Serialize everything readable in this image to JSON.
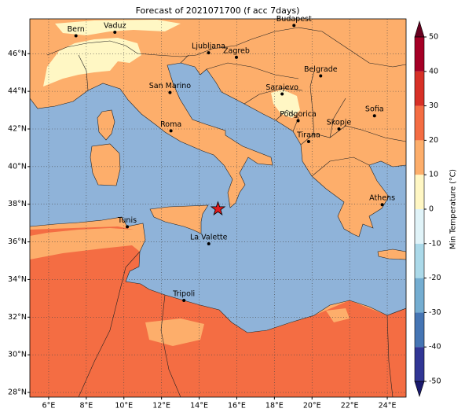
{
  "title": "Forecast of 2021071700 (f acc 7days)",
  "map": {
    "xlim": [
      5,
      25
    ],
    "ylim": [
      27.75,
      47.85
    ],
    "xticks": [
      {
        "value": 6,
        "label": "6°E"
      },
      {
        "value": 8,
        "label": "8°E"
      },
      {
        "value": 10,
        "label": "10°E"
      },
      {
        "value": 12,
        "label": "12°E"
      },
      {
        "value": 14,
        "label": "14°E"
      },
      {
        "value": 16,
        "label": "16°E"
      },
      {
        "value": 18,
        "label": "18°E"
      },
      {
        "value": 20,
        "label": "20°E"
      },
      {
        "value": 22,
        "label": "22°E"
      },
      {
        "value": 24,
        "label": "24°E"
      }
    ],
    "yticks": [
      {
        "value": 28,
        "label": "28°N"
      },
      {
        "value": 30,
        "label": "30°N"
      },
      {
        "value": 32,
        "label": "32°N"
      },
      {
        "value": 34,
        "label": "34°N"
      },
      {
        "value": 36,
        "label": "36°N"
      },
      {
        "value": 38,
        "label": "38°N"
      },
      {
        "value": 40,
        "label": "40°N"
      },
      {
        "value": 42,
        "label": "42°N"
      },
      {
        "value": 44,
        "label": "44°N"
      },
      {
        "value": 46,
        "label": "46°N"
      }
    ],
    "grid": true,
    "cities": [
      {
        "name": "Bern",
        "lon": 7.45,
        "lat": 46.95
      },
      {
        "name": "Vaduz",
        "lon": 9.52,
        "lat": 47.14
      },
      {
        "name": "Budapest",
        "lon": 19.04,
        "lat": 47.5
      },
      {
        "name": "Ljubljana",
        "lon": 14.5,
        "lat": 46.05
      },
      {
        "name": "Zagreb",
        "lon": 15.98,
        "lat": 45.81
      },
      {
        "name": "Belgrade",
        "lon": 20.46,
        "lat": 44.82
      },
      {
        "name": "San Marino",
        "lon": 12.45,
        "lat": 43.94
      },
      {
        "name": "Sarajevo",
        "lon": 18.41,
        "lat": 43.86
      },
      {
        "name": "Sofia",
        "lon": 23.32,
        "lat": 42.7
      },
      {
        "name": "Podgorica",
        "lon": 19.26,
        "lat": 42.44
      },
      {
        "name": "Skopje",
        "lon": 21.43,
        "lat": 42.0
      },
      {
        "name": "Roma",
        "lon": 12.5,
        "lat": 41.9
      },
      {
        "name": "Tirana",
        "lon": 19.82,
        "lat": 41.33
      },
      {
        "name": "Athens",
        "lon": 23.73,
        "lat": 37.98
      },
      {
        "name": "Tunis",
        "lon": 10.18,
        "lat": 36.8
      },
      {
        "name": "La Valette",
        "lon": 14.51,
        "lat": 35.9
      },
      {
        "name": "Tripoli",
        "lon": 13.19,
        "lat": 32.89
      }
    ],
    "marker": {
      "lon": 15.0,
      "lat": 37.75,
      "color": "#e31a1c"
    }
  },
  "colorbar": {
    "label": "Min Temperature (°C)",
    "lim": [
      -50,
      50
    ],
    "ticks": [
      -50,
      -40,
      -30,
      -20,
      -10,
      0,
      10,
      20,
      30,
      40,
      50
    ],
    "colors": [
      "#313695",
      "#4575b4",
      "#74add1",
      "#abd9e9",
      "#e0f3f8",
      "#fff7c4",
      "#fdae6b",
      "#f46d43",
      "#d73027",
      "#a50026"
    ],
    "under_color": "#1a1a6e",
    "over_color": "#67001f"
  }
}
